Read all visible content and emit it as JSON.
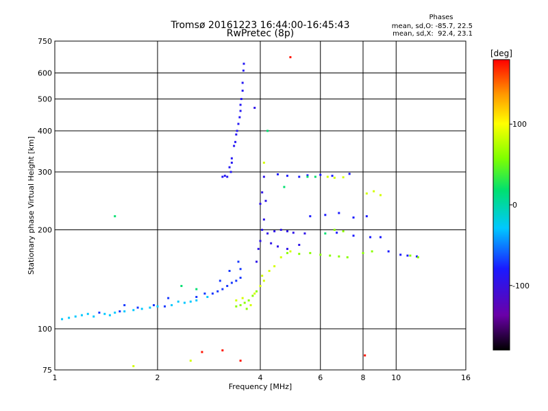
{
  "chart_data": {
    "type": "scatter",
    "title": "Tromsø 20161223 16:44:00-16:45:43",
    "subtitle": "RwPretec (8p)",
    "stats": {
      "heading": "Phases",
      "o_line": "mean, sd,O: -85.7, 22.5",
      "x_line": "mean, sd,X:  92.4, 23.1"
    },
    "xlabel": "Frequency [MHz]",
    "ylabel": "Stationary phase Virtual Height [km]",
    "xscale": "log2",
    "yscale": "log",
    "xlim": [
      1,
      16
    ],
    "ylim": [
      75,
      750
    ],
    "xticks": [
      1,
      2,
      4,
      6,
      8,
      10,
      16
    ],
    "yticks": [
      75,
      100,
      200,
      300,
      400,
      500,
      600,
      750
    ],
    "grid": true,
    "colorbar": {
      "label": "[deg]",
      "min": -180,
      "max": 180,
      "ticks": [
        100,
        0,
        -100
      ]
    },
    "series": [
      {
        "color_value": -40,
        "points": [
          [
            1.05,
            107
          ],
          [
            1.1,
            108
          ],
          [
            1.15,
            109
          ],
          [
            1.2,
            110
          ],
          [
            1.3,
            109
          ],
          [
            1.4,
            111
          ],
          [
            1.5,
            112
          ],
          [
            1.6,
            113
          ],
          [
            1.8,
            115
          ],
          [
            2.0,
            117
          ],
          [
            2.2,
            118
          ],
          [
            2.4,
            120
          ],
          [
            2.6,
            122
          ],
          [
            2.8,
            125
          ],
          [
            1.25,
            111
          ],
          [
            1.45,
            110
          ],
          [
            1.7,
            114
          ],
          [
            1.9,
            116
          ],
          [
            2.3,
            121
          ],
          [
            2.5,
            121
          ]
        ]
      },
      {
        "color_value": -90,
        "points": [
          [
            1.35,
            112
          ],
          [
            1.55,
            113
          ],
          [
            1.75,
            116
          ],
          [
            1.95,
            118
          ],
          [
            2.1,
            117
          ],
          [
            2.6,
            125
          ],
          [
            2.9,
            128
          ],
          [
            3.0,
            130
          ],
          [
            3.1,
            132
          ],
          [
            3.2,
            135
          ],
          [
            3.3,
            138
          ],
          [
            3.4,
            140
          ],
          [
            3.5,
            143
          ],
          [
            1.6,
            118
          ],
          [
            2.15,
            124
          ],
          [
            2.75,
            128
          ],
          [
            3.05,
            140
          ],
          [
            3.25,
            150
          ],
          [
            3.45,
            160
          ],
          [
            3.5,
            152
          ]
        ]
      },
      {
        "color_value": -105,
        "points": [
          [
            3.2,
            290
          ],
          [
            3.25,
            310
          ],
          [
            3.3,
            330
          ],
          [
            3.35,
            360
          ],
          [
            3.4,
            390
          ],
          [
            3.45,
            420
          ],
          [
            3.5,
            460
          ],
          [
            3.52,
            500
          ],
          [
            3.55,
            560
          ],
          [
            3.57,
            610
          ],
          [
            3.58,
            640
          ],
          [
            3.48,
            440
          ],
          [
            3.42,
            400
          ],
          [
            3.38,
            370
          ],
          [
            3.3,
            320
          ],
          [
            3.28,
            300
          ],
          [
            3.5,
            480
          ],
          [
            3.55,
            530
          ],
          [
            3.1,
            290
          ],
          [
            3.15,
            292
          ]
        ]
      },
      {
        "color_value": -110,
        "points": [
          [
            3.9,
            160
          ],
          [
            3.95,
            175
          ],
          [
            4.0,
            185
          ],
          [
            4.05,
            200
          ],
          [
            4.1,
            215
          ],
          [
            4.0,
            240
          ],
          [
            4.05,
            260
          ],
          [
            4.1,
            290
          ],
          [
            4.2,
            195
          ],
          [
            4.4,
            198
          ],
          [
            4.6,
            200
          ],
          [
            4.8,
            198
          ],
          [
            5.0,
            196
          ],
          [
            5.4,
            195
          ],
          [
            4.3,
            182
          ],
          [
            4.5,
            178
          ],
          [
            4.8,
            175
          ],
          [
            5.2,
            180
          ],
          [
            3.85,
            470
          ],
          [
            4.15,
            245
          ]
        ]
      },
      {
        "color_value": -100,
        "points": [
          [
            4.5,
            295
          ],
          [
            4.8,
            292
          ],
          [
            5.2,
            290
          ],
          [
            5.5,
            293
          ],
          [
            6.0,
            294
          ],
          [
            6.5,
            292
          ],
          [
            7.3,
            296
          ],
          [
            6.8,
            225
          ],
          [
            7.5,
            218
          ],
          [
            8.2,
            220
          ],
          [
            5.6,
            220
          ],
          [
            6.2,
            222
          ],
          [
            6.7,
            196
          ],
          [
            7.5,
            192
          ],
          [
            8.4,
            190
          ],
          [
            9.0,
            190
          ],
          [
            9.5,
            172
          ],
          [
            10.3,
            168
          ],
          [
            10.8,
            167
          ],
          [
            11.5,
            166
          ]
        ]
      },
      {
        "color_value": 45,
        "points": [
          [
            3.5,
            118
          ],
          [
            3.6,
            120
          ],
          [
            3.7,
            122
          ],
          [
            3.8,
            126
          ],
          [
            3.9,
            130
          ],
          [
            3.65,
            115
          ],
          [
            3.4,
            117
          ],
          [
            4.8,
            170
          ],
          [
            5.2,
            169
          ],
          [
            5.6,
            170
          ],
          [
            6.0,
            168
          ],
          [
            6.4,
            167
          ],
          [
            6.8,
            166
          ],
          [
            7.2,
            165
          ],
          [
            8.0,
            170
          ],
          [
            8.5,
            172
          ],
          [
            6.6,
            200
          ],
          [
            7.0,
            198
          ],
          [
            11.6,
            165
          ],
          [
            11.0,
            167
          ]
        ]
      },
      {
        "color_value": 80,
        "points": [
          [
            3.4,
            122
          ],
          [
            3.55,
            124
          ],
          [
            3.75,
            118
          ],
          [
            3.85,
            128
          ],
          [
            4.0,
            135
          ],
          [
            4.1,
            140
          ],
          [
            4.05,
            145
          ],
          [
            4.25,
            150
          ],
          [
            4.4,
            155
          ],
          [
            4.6,
            165
          ],
          [
            4.9,
            172
          ],
          [
            6.3,
            290
          ],
          [
            6.6,
            288
          ],
          [
            7.0,
            289
          ],
          [
            8.2,
            258
          ],
          [
            8.6,
            262
          ],
          [
            9.0,
            255
          ],
          [
            2.5,
            80
          ],
          [
            1.7,
            77
          ],
          [
            4.1,
            320
          ]
        ]
      },
      {
        "color_value": 175,
        "points": [
          [
            4.9,
            670
          ],
          [
            2.7,
            85
          ],
          [
            3.1,
            86
          ],
          [
            8.1,
            83
          ],
          [
            3.5,
            80
          ]
        ]
      },
      {
        "color_value": 0,
        "points": [
          [
            1.5,
            220
          ],
          [
            2.35,
            135
          ],
          [
            2.6,
            132
          ],
          [
            4.7,
            270
          ],
          [
            5.5,
            290
          ],
          [
            6.2,
            195
          ],
          [
            4.2,
            400
          ],
          [
            5.8,
            290
          ]
        ]
      }
    ]
  }
}
